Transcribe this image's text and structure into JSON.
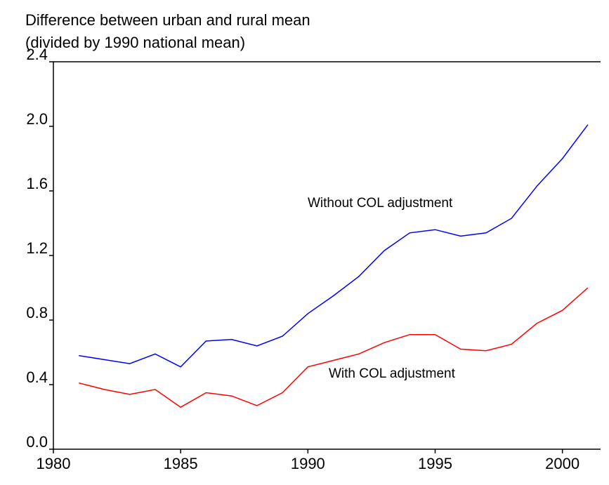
{
  "chart_data": {
    "type": "line",
    "title": [
      "Difference between urban and rural mean",
      "(divided by 1990 national mean)"
    ],
    "x": [
      1981,
      1982,
      1983,
      1984,
      1985,
      1986,
      1987,
      1988,
      1989,
      1990,
      1991,
      1992,
      1993,
      1994,
      1995,
      1996,
      1997,
      1998,
      1999,
      2000,
      2001
    ],
    "series": [
      {
        "name": "Without COL adjustment",
        "color": "#0000ff",
        "values": [
          0.58,
          0.555,
          0.53,
          0.59,
          0.51,
          0.67,
          0.68,
          0.64,
          0.7,
          0.84,
          0.95,
          1.07,
          1.23,
          1.34,
          1.36,
          1.32,
          1.34,
          1.43,
          1.63,
          1.8,
          2.01
        ]
      },
      {
        "name": "With COL adjustment",
        "color": "#ff0000",
        "values": [
          0.41,
          0.37,
          0.34,
          0.37,
          0.26,
          0.35,
          0.33,
          0.27,
          0.35,
          0.51,
          0.55,
          0.59,
          0.66,
          0.71,
          0.71,
          0.62,
          0.61,
          0.65,
          0.78,
          0.86,
          1.0
        ]
      }
    ],
    "xlim": [
      1980,
      2001.5
    ],
    "xticks": [
      1980,
      1985,
      1990,
      1995,
      2000
    ],
    "ylim": [
      0,
      2.4
    ],
    "yticks": [
      {
        "value": 0,
        "label": "0.0"
      },
      0.4,
      0.8,
      1.2,
      1.6,
      {
        "value": 2,
        "label": "2.0"
      },
      2.4
    ],
    "grid": false
  }
}
